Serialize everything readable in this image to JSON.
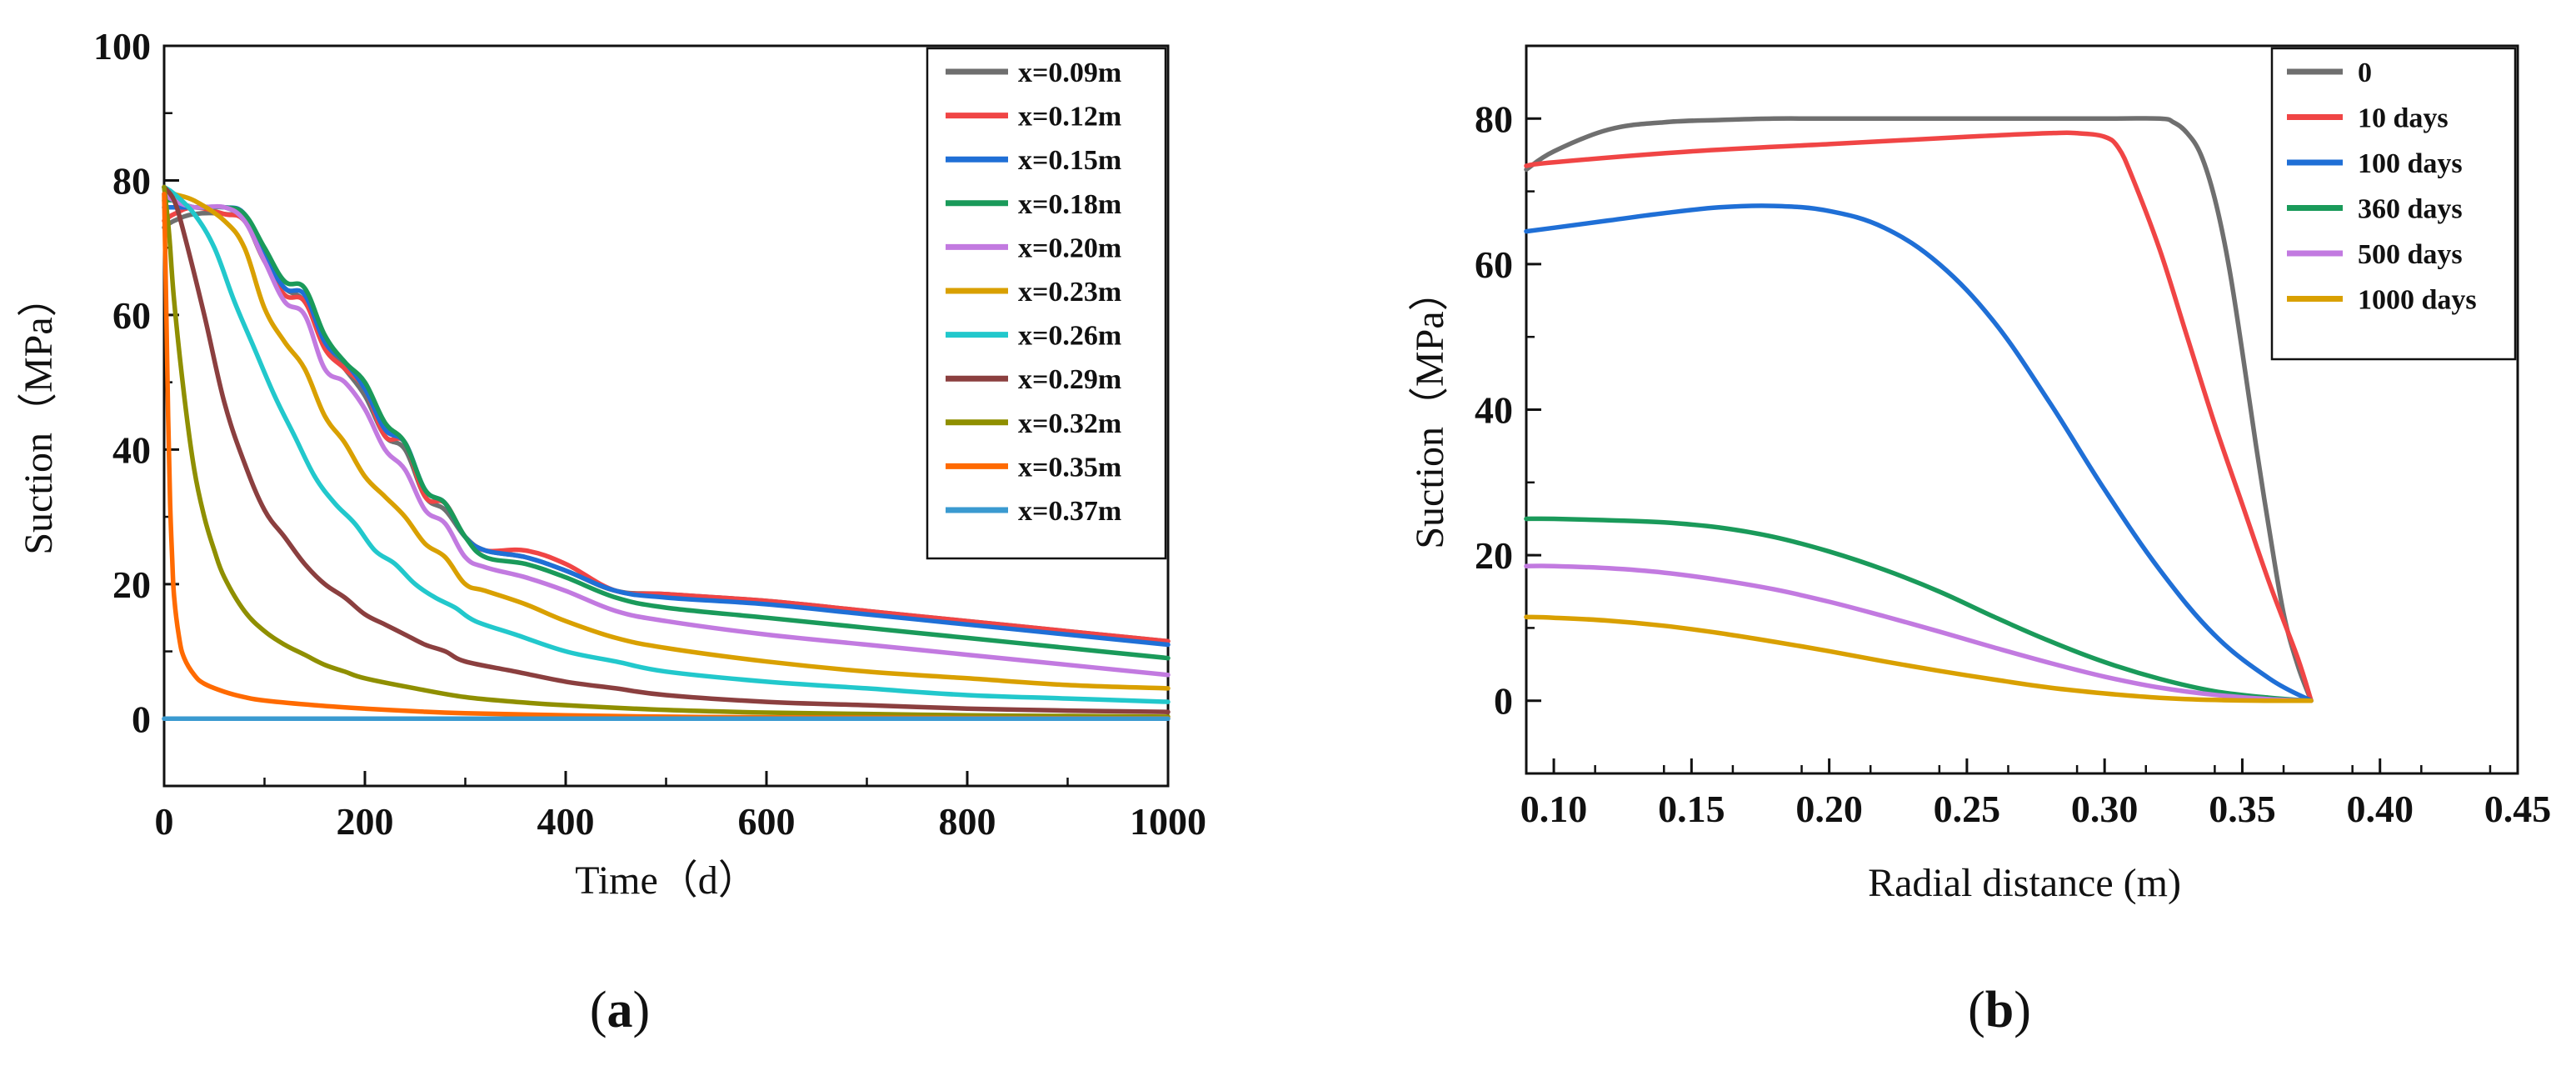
{
  "chart_data": [
    {
      "type": "line",
      "panel_label": "a",
      "xlabel": "Time（d）",
      "ylabel": "Suction（MPa）",
      "xlim": [
        0,
        1000
      ],
      "ylim": [
        -10,
        100
      ],
      "xticks": [
        0,
        200,
        400,
        600,
        800,
        1000
      ],
      "yticks": [
        0,
        20,
        40,
        60,
        80,
        100
      ],
      "legend_position": "top-right",
      "series": [
        {
          "name": "x=0.09m",
          "color": "#6f6f6f",
          "x": [
            0,
            10,
            30,
            60,
            80,
            100,
            120,
            140,
            160,
            180,
            200,
            220,
            240,
            260,
            280,
            300,
            320,
            360,
            400,
            450,
            500,
            600,
            700,
            800,
            900,
            1000
          ],
          "y": [
            73,
            74,
            75,
            75,
            74,
            68,
            64,
            62,
            56,
            52,
            48,
            42,
            40,
            33,
            31,
            27,
            25,
            24,
            22,
            19,
            18.5,
            17.5,
            16,
            14.5,
            13,
            11.5
          ]
        },
        {
          "name": "x=0.12m",
          "color": "#f04545",
          "x": [
            0,
            10,
            30,
            60,
            80,
            100,
            120,
            140,
            160,
            180,
            200,
            220,
            240,
            260,
            280,
            300,
            320,
            360,
            400,
            450,
            500,
            600,
            700,
            800,
            900,
            1000
          ],
          "y": [
            74,
            75,
            76,
            75,
            74,
            68,
            63,
            62,
            55,
            52,
            49,
            42,
            41,
            33,
            32,
            27,
            25,
            25,
            23,
            19,
            18.5,
            17.5,
            16,
            14.5,
            13,
            11.5
          ]
        },
        {
          "name": "x=0.15m",
          "color": "#1f6fd6",
          "x": [
            0,
            10,
            30,
            60,
            80,
            100,
            120,
            140,
            160,
            180,
            200,
            220,
            240,
            260,
            280,
            300,
            320,
            360,
            400,
            450,
            500,
            600,
            700,
            800,
            900,
            1000
          ],
          "y": [
            76,
            76,
            76,
            76,
            75,
            69,
            64,
            63,
            56,
            53,
            49,
            43,
            41,
            34,
            32,
            27,
            25,
            24,
            22,
            19,
            18,
            17,
            15.5,
            14,
            12.5,
            11
          ]
        },
        {
          "name": "x=0.18m",
          "color": "#1a9a5a",
          "x": [
            0,
            10,
            30,
            60,
            80,
            100,
            120,
            140,
            160,
            180,
            200,
            220,
            240,
            260,
            280,
            300,
            320,
            360,
            400,
            450,
            500,
            600,
            700,
            800,
            900,
            1000
          ],
          "y": [
            77,
            77,
            76,
            76,
            75,
            70,
            65,
            64,
            57,
            53,
            50,
            44,
            41,
            34,
            32,
            27,
            24,
            23,
            21,
            18,
            16.5,
            15,
            13.5,
            12,
            10.5,
            9
          ]
        },
        {
          "name": "x=0.20m",
          "color": "#c27ae0",
          "x": [
            0,
            10,
            30,
            60,
            80,
            100,
            120,
            140,
            160,
            180,
            200,
            220,
            240,
            260,
            280,
            300,
            320,
            360,
            400,
            450,
            500,
            600,
            700,
            800,
            900,
            1000
          ],
          "y": [
            78,
            77,
            76,
            76,
            74,
            68,
            62,
            60,
            52,
            50,
            46,
            40,
            37,
            31,
            29,
            24,
            22.5,
            21,
            19,
            16,
            14.5,
            12.5,
            11,
            9.5,
            8,
            6.5
          ]
        },
        {
          "name": "x=0.23m",
          "color": "#d9a000",
          "x": [
            0,
            10,
            30,
            60,
            80,
            100,
            120,
            140,
            160,
            180,
            200,
            220,
            240,
            260,
            280,
            300,
            320,
            360,
            400,
            450,
            500,
            600,
            700,
            800,
            900,
            1000
          ],
          "y": [
            79,
            78,
            77,
            74,
            70,
            61,
            56,
            52,
            45,
            41,
            36,
            33,
            30,
            26,
            24,
            20,
            19,
            17,
            14.5,
            12,
            10.5,
            8.5,
            7,
            6,
            5,
            4.5
          ]
        },
        {
          "name": "x=0.26m",
          "color": "#22c8cc",
          "x": [
            0,
            10,
            30,
            50,
            70,
            90,
            110,
            130,
            150,
            170,
            190,
            210,
            230,
            250,
            270,
            290,
            310,
            350,
            400,
            450,
            500,
            600,
            700,
            800,
            900,
            1000
          ],
          "y": [
            79,
            78,
            75,
            70,
            62,
            55,
            48,
            42,
            36,
            32,
            29,
            25,
            23,
            20,
            18,
            16.5,
            14.5,
            12.5,
            10,
            8.5,
            7,
            5.5,
            4.5,
            3.5,
            3,
            2.5
          ]
        },
        {
          "name": "x=0.29m",
          "color": "#8b3f3f",
          "x": [
            0,
            10,
            20,
            40,
            60,
            80,
            100,
            120,
            140,
            160,
            180,
            200,
            220,
            240,
            260,
            280,
            300,
            350,
            400,
            450,
            500,
            600,
            700,
            800,
            900,
            1000
          ],
          "y": [
            79,
            77,
            72,
            60,
            47,
            38,
            31,
            27,
            23,
            20,
            18,
            15.5,
            14,
            12.5,
            11,
            10,
            8.5,
            7,
            5.5,
            4.5,
            3.5,
            2.5,
            2,
            1.5,
            1.2,
            1
          ]
        },
        {
          "name": "x=0.32m",
          "color": "#8f8f00",
          "x": [
            0,
            5,
            10,
            20,
            30,
            40,
            50,
            60,
            80,
            100,
            120,
            140,
            160,
            180,
            200,
            250,
            300,
            350,
            400,
            500,
            600,
            700,
            800,
            900,
            1000
          ],
          "y": [
            79,
            72,
            62,
            48,
            37,
            30,
            25,
            21,
            16,
            13,
            11,
            9.5,
            8,
            7,
            6,
            4.5,
            3.2,
            2.5,
            2,
            1.3,
            0.9,
            0.7,
            0.5,
            0.4,
            0.3
          ]
        },
        {
          "name": "x=0.35m",
          "color": "#ff6a00",
          "x": [
            0,
            2,
            4,
            6,
            8,
            10,
            15,
            20,
            30,
            40,
            60,
            80,
            100,
            150,
            200,
            250,
            300,
            400,
            500,
            600,
            800,
            1000
          ],
          "y": [
            78,
            62,
            45,
            32,
            24,
            18,
            12,
            9,
            6.5,
            5.2,
            4,
            3.2,
            2.7,
            2,
            1.5,
            1.1,
            0.8,
            0.5,
            0.3,
            0.2,
            0.1,
            0.05
          ]
        },
        {
          "name": "x=0.37m",
          "color": "#3a9ad0",
          "x": [
            0,
            1000
          ],
          "y": [
            0,
            0
          ]
        }
      ]
    },
    {
      "type": "line",
      "panel_label": "b",
      "xlabel": "Radial distance (m)",
      "ylabel": "Suction（MPa）",
      "xlim": [
        0.09,
        0.45
      ],
      "ylim": [
        -10,
        90
      ],
      "xticks": [
        0.1,
        0.15,
        0.2,
        0.25,
        0.3,
        0.35,
        0.4,
        0.45
      ],
      "xtick_labels": [
        "0.10",
        "0.15",
        "0.20",
        "0.25",
        "0.30",
        "0.35",
        "0.40",
        "0.45"
      ],
      "yticks": [
        0,
        20,
        40,
        60,
        80
      ],
      "legend_position": "top-right",
      "series": [
        {
          "name": "0",
          "color": "#6f6f6f",
          "x": [
            0.09,
            0.1,
            0.12,
            0.14,
            0.16,
            0.18,
            0.2,
            0.25,
            0.3,
            0.32,
            0.325,
            0.33,
            0.335,
            0.34,
            0.345,
            0.35,
            0.355,
            0.36,
            0.365,
            0.37,
            0.375
          ],
          "y": [
            73,
            75.5,
            78.5,
            79.5,
            79.8,
            80,
            80,
            80,
            80,
            80,
            79.5,
            78,
            75,
            69,
            60,
            48,
            35,
            23,
            12,
            5,
            0
          ]
        },
        {
          "name": "10 days",
          "color": "#f04545",
          "x": [
            0.09,
            0.1,
            0.15,
            0.2,
            0.25,
            0.28,
            0.29,
            0.3,
            0.305,
            0.31,
            0.32,
            0.33,
            0.34,
            0.35,
            0.36,
            0.37,
            0.375
          ],
          "y": [
            73.5,
            74,
            75.5,
            76.5,
            77.5,
            78,
            78,
            77.5,
            76,
            72,
            62,
            50,
            38,
            27,
            16,
            6,
            0
          ]
        },
        {
          "name": "100 days",
          "color": "#1f6fd6",
          "x": [
            0.09,
            0.1,
            0.12,
            0.14,
            0.16,
            0.18,
            0.2,
            0.22,
            0.24,
            0.26,
            0.28,
            0.3,
            0.32,
            0.34,
            0.36,
            0.375
          ],
          "y": [
            64.5,
            65,
            66,
            67,
            67.8,
            68,
            67.3,
            65,
            60,
            52,
            41,
            29,
            18,
            9,
            3,
            0
          ]
        },
        {
          "name": "360 days",
          "color": "#1a9a5a",
          "x": [
            0.09,
            0.1,
            0.12,
            0.14,
            0.16,
            0.18,
            0.2,
            0.22,
            0.24,
            0.26,
            0.28,
            0.3,
            0.32,
            0.34,
            0.36,
            0.375
          ],
          "y": [
            25,
            25,
            24.8,
            24.5,
            23.8,
            22.5,
            20.5,
            18,
            15,
            11.5,
            8.2,
            5.3,
            3,
            1.3,
            0.4,
            0
          ]
        },
        {
          "name": "500 days",
          "color": "#c27ae0",
          "x": [
            0.09,
            0.1,
            0.12,
            0.14,
            0.16,
            0.18,
            0.2,
            0.22,
            0.24,
            0.26,
            0.28,
            0.3,
            0.32,
            0.34,
            0.36,
            0.375
          ],
          "y": [
            18.5,
            18.5,
            18.2,
            17.6,
            16.6,
            15.3,
            13.6,
            11.6,
            9.5,
            7.3,
            5.2,
            3.3,
            1.8,
            0.8,
            0.2,
            0
          ]
        },
        {
          "name": "1000 days",
          "color": "#d9a000",
          "x": [
            0.09,
            0.1,
            0.12,
            0.14,
            0.16,
            0.18,
            0.2,
            0.22,
            0.24,
            0.26,
            0.28,
            0.3,
            0.32,
            0.34,
            0.36,
            0.375
          ],
          "y": [
            11.5,
            11.4,
            11,
            10.3,
            9.3,
            8.1,
            6.8,
            5.4,
            4.1,
            2.9,
            1.8,
            1,
            0.4,
            0.1,
            0,
            0
          ]
        }
      ]
    }
  ]
}
